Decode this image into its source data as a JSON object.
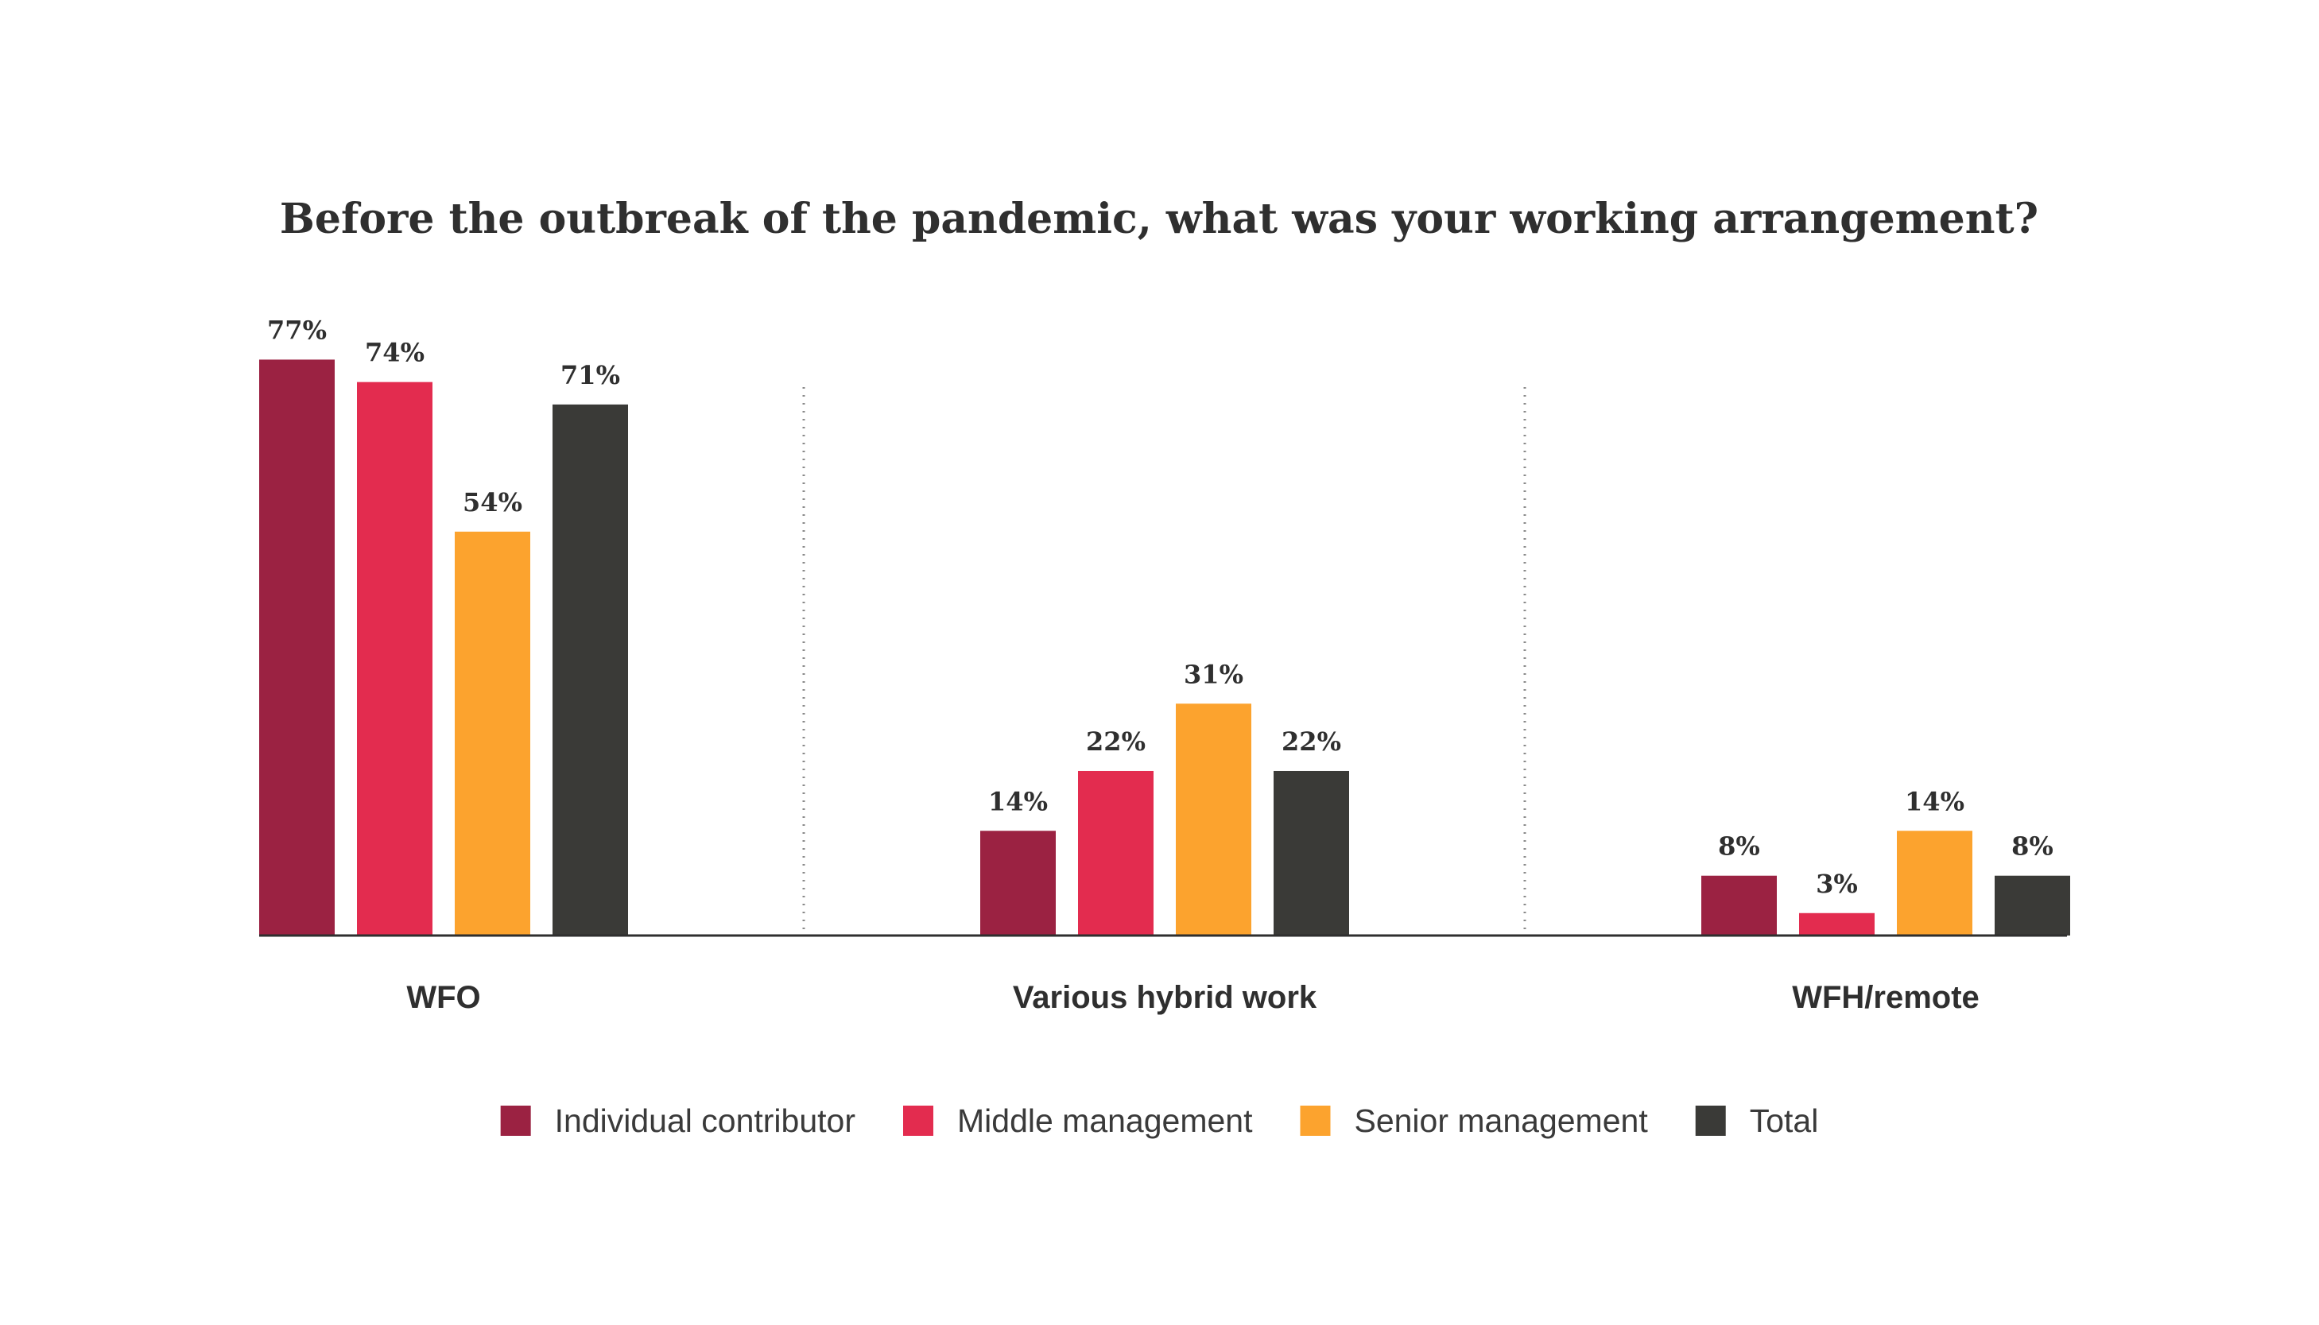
{
  "chart_data": {
    "type": "bar",
    "title": "Before the outbreak of the pandemic, what was your working arrangement?",
    "categories": [
      "WFO",
      "Various hybrid work",
      "WFH/remote"
    ],
    "series": [
      {
        "name": "Individual contributor",
        "color": "#9b2242",
        "values": [
          77,
          14,
          8
        ],
        "labels": [
          "77%",
          "14%",
          "8%"
        ]
      },
      {
        "name": "Middle management",
        "color": "#e32c4f",
        "values": [
          74,
          22,
          3
        ],
        "labels": [
          "74%",
          "22%",
          "3%"
        ]
      },
      {
        "name": "Senior management",
        "color": "#fca32e",
        "values": [
          54,
          31,
          14
        ],
        "labels": [
          "54%",
          "31%",
          "14%"
        ]
      },
      {
        "name": "Total",
        "color": "#3a3a37",
        "values": [
          71,
          22,
          8
        ],
        "labels": [
          "71%",
          "22%",
          "8%"
        ]
      }
    ],
    "value_unit": "%",
    "ylim": [
      0,
      80
    ],
    "grid": false,
    "group_separators": "dotted",
    "legend_position": "bottom"
  }
}
